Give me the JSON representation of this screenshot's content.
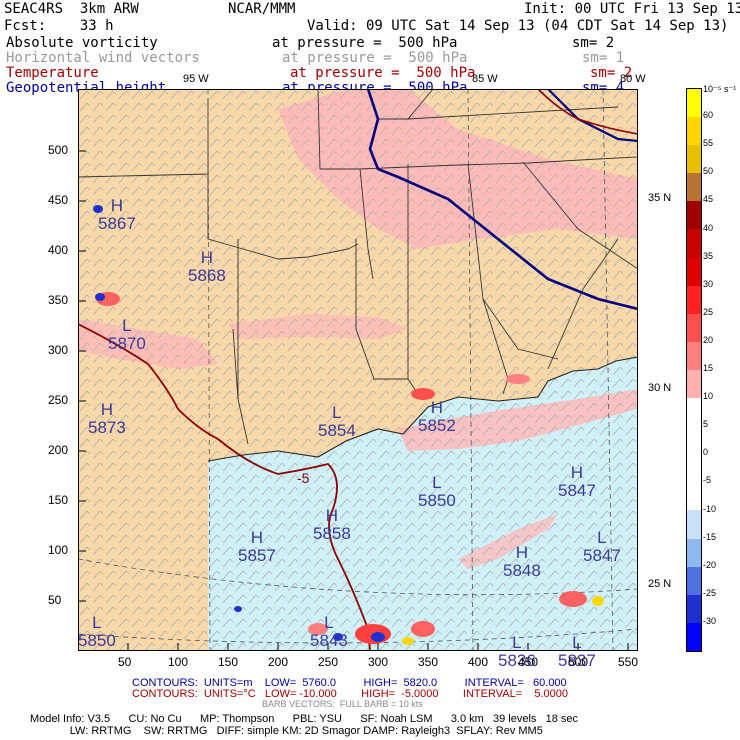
{
  "header": {
    "title_left": "SEAC4RS  3km ARW",
    "title_mid": "NCAR/MMM",
    "init": "Init: 00 UTC Fri 13 Sep 13",
    "fcst": "Fcst:    33 h",
    "valid": "Valid: 09 UTC Sat 14 Sep 13 (04 CDT Sat 14 Sep 13)",
    "fields": [
      {
        "name": "Absolute vorticity",
        "level": "at pressure =  500 hPa",
        "sm": "sm= 2"
      },
      {
        "name": "Horizontal wind vectors",
        "level": "at pressure =  500 hPa",
        "sm": "sm= 1"
      },
      {
        "name": "Temperature",
        "level": "at pressure =  500 hPa",
        "sm": "sm= 2"
      },
      {
        "name": "Geopotential height",
        "level": "at pressure =  500 hPa",
        "sm": "sm= 4"
      }
    ]
  },
  "map": {
    "lon_labels": [
      "95 W",
      "85 W",
      "80 W"
    ],
    "lat_labels": [
      "35 N",
      "30 N",
      "25 N"
    ],
    "x_ticks": [
      "50",
      "100",
      "150",
      "200",
      "250",
      "300",
      "350",
      "400",
      "450",
      "500",
      "550"
    ],
    "y_ticks": [
      "50",
      "100",
      "150",
      "200",
      "250",
      "300",
      "350",
      "400",
      "450",
      "500"
    ],
    "highs_lows": [
      {
        "type": "H",
        "value": "5867"
      },
      {
        "type": "H",
        "value": "5868"
      },
      {
        "type": "L",
        "value": "5870"
      },
      {
        "type": "H",
        "value": "5873"
      },
      {
        "type": "L",
        "value": "5854"
      },
      {
        "type": "H",
        "value": "5852"
      },
      {
        "type": "L",
        "value": "5850"
      },
      {
        "type": "H",
        "value": "5847"
      },
      {
        "type": "H",
        "value": "5858"
      },
      {
        "type": "H",
        "value": "5857"
      },
      {
        "type": "H",
        "value": "5848"
      },
      {
        "type": "L",
        "value": "5847"
      },
      {
        "type": "L",
        "value": "5843"
      },
      {
        "type": "L",
        "value": "5836"
      },
      {
        "type": "L",
        "value": "5837"
      },
      {
        "type": "L",
        "value": "5850"
      }
    ],
    "temp_label": "-5"
  },
  "colorbar": {
    "unit": "10⁻⁵ s⁻¹",
    "labels": [
      "60",
      "55",
      "50",
      "45",
      "40",
      "35",
      "30",
      "25",
      "20",
      "15",
      "10",
      "5",
      "0",
      "-5",
      "-10",
      "-15",
      "-20",
      "-25",
      "-30"
    ],
    "colors": [
      "#ffff00",
      "#ffd700",
      "#e8c000",
      "#b87333",
      "#a00000",
      "#c80000",
      "#e00000",
      "#ff2020",
      "#ff5050",
      "#ff8080",
      "#ffb0b0",
      "#ffffff",
      "#ffffff",
      "#ffffff",
      "#ffffff",
      "#c8e0f8",
      "#90b8f0",
      "#5070e0",
      "#2030d0",
      "#0000ff"
    ]
  },
  "footer": {
    "line1a": "CONTOURS:  UNITS=m    LOW=  5760.0         HIGH=  5820.0         INTERVAL=   60.000",
    "line1b": "CONTOURS:  UNITS=°C   LOW= -10.000        HIGH=  -5.0000        INTERVAL=    5.0000",
    "line2": "BARB VECTORS:  FULL BARB = 10 kts",
    "model1": "Model Info: V3.5      CU: No Cu      MP: Thompson      PBL: YSU      SF: Noah LSM      3.0 km   39 levels   18 sec",
    "model2": "             LW: RRTMG    SW: RRTMG   DIFF: simple KM: 2D Smagor DAMP: Rayleigh3  SFLAY: Rev MM5"
  },
  "colors": {
    "land": "#f8d8a8",
    "ocean": "#d0f0f8",
    "vort_pink": "#ffb8b8",
    "height": "#000080",
    "temp": "#800000"
  }
}
